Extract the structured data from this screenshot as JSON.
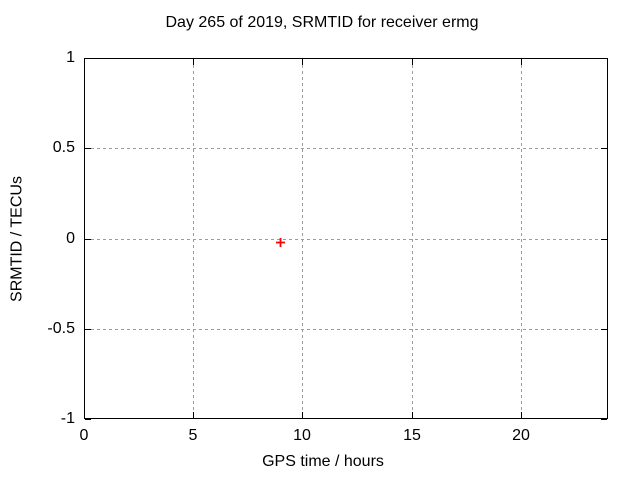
{
  "chart_data": {
    "type": "scatter",
    "title": "Day 265 of 2019, SRMTID for receiver ermg",
    "xlabel": "GPS time / hours",
    "ylabel": "SRMTID / TECUs",
    "xlim": [
      0,
      24
    ],
    "ylim": [
      -1,
      1
    ],
    "xticks": [
      {
        "value": 0,
        "label": "0"
      },
      {
        "value": 5,
        "label": "5"
      },
      {
        "value": 10,
        "label": "10"
      },
      {
        "value": 15,
        "label": "15"
      },
      {
        "value": 20,
        "label": "20"
      }
    ],
    "yticks": [
      {
        "value": -1,
        "label": "-1"
      },
      {
        "value": -0.5,
        "label": "-0.5"
      },
      {
        "value": 0,
        "label": "0"
      },
      {
        "value": 0.5,
        "label": "0.5"
      },
      {
        "value": 1,
        "label": "1"
      }
    ],
    "grid": true,
    "legend_position": "none",
    "series": [
      {
        "name": "SRMTID",
        "marker": "plus",
        "color": "#ff0000",
        "points": [
          {
            "x": 9,
            "y": 0
          }
        ]
      }
    ],
    "colors": {
      "background": "#ffffff",
      "border": "#000000",
      "grid": "#9c9c9c",
      "text": "#000000"
    }
  }
}
